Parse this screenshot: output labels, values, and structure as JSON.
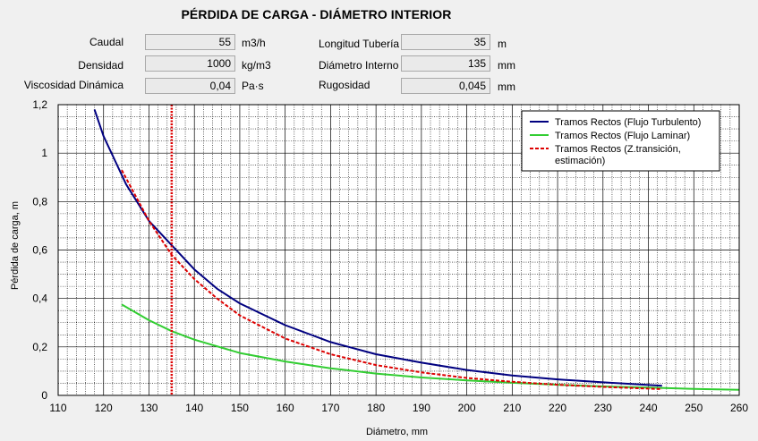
{
  "title": "PÉRDIDA DE CARGA - DIÁMETRO INTERIOR",
  "form": {
    "caudal": {
      "label": "Caudal",
      "value": "55",
      "unit": "m3/h"
    },
    "densidad": {
      "label": "Densidad",
      "value": "1000",
      "unit": "kg/m3"
    },
    "viscosidad": {
      "label": "Viscosidad Dinámica",
      "value": "0,04",
      "unit": "Pa·s"
    },
    "longitud": {
      "label": "Longitud Tubería",
      "value": "35",
      "unit": "m"
    },
    "diametro": {
      "label": "Diámetro Interno",
      "value": "135",
      "unit": "mm"
    },
    "rugosidad": {
      "label": "Rugosidad",
      "value": "0,045",
      "unit": "mm"
    }
  },
  "colors": {
    "turbulento": "#000080",
    "laminar": "#32cd32",
    "transicion": "#dd0000",
    "marker": "#dd0000",
    "grid": "#000000",
    "plot_bg": "#ffffff"
  },
  "chart_data": {
    "type": "line",
    "xlabel": "Diámetro, mm",
    "ylabel": "Pérdida de carga, m",
    "xlim": [
      110,
      260
    ],
    "ylim": [
      0,
      1.2
    ],
    "x_ticks": [
      "110",
      "120",
      "130",
      "140",
      "150",
      "160",
      "170",
      "180",
      "190",
      "200",
      "210",
      "220",
      "230",
      "240",
      "250",
      "260"
    ],
    "y_ticks": [
      "0",
      "0,2",
      "0,4",
      "0,6",
      "0,8",
      "1",
      "1,2"
    ],
    "grid": true,
    "legend_position": "top-right",
    "marker_x": 135,
    "series": [
      {
        "name": "Tramos Rectos (Flujo Turbulento)",
        "color_key": "turbulento",
        "style": "solid",
        "x": [
          118,
          120,
          125,
          130,
          135,
          140,
          145,
          150,
          160,
          170,
          180,
          190,
          200,
          210,
          220,
          230,
          243
        ],
        "y": [
          1.18,
          1.07,
          0.87,
          0.72,
          0.62,
          0.52,
          0.44,
          0.38,
          0.29,
          0.22,
          0.17,
          0.135,
          0.105,
          0.082,
          0.066,
          0.054,
          0.04
        ]
      },
      {
        "name": "Tramos Rectos (Flujo Laminar)",
        "color_key": "laminar",
        "style": "solid",
        "x": [
          124,
          130,
          135,
          140,
          150,
          160,
          170,
          180,
          190,
          200,
          210,
          220,
          230,
          240,
          250,
          260
        ],
        "y": [
          0.375,
          0.31,
          0.265,
          0.23,
          0.175,
          0.14,
          0.112,
          0.09,
          0.074,
          0.062,
          0.052,
          0.044,
          0.037,
          0.032,
          0.027,
          0.023
        ]
      },
      {
        "name": "Tramos Rectos (Z.transición, estimación)",
        "color_key": "transicion",
        "style": "dashed",
        "x": [
          124,
          130,
          135,
          140,
          145,
          150,
          160,
          170,
          180,
          190,
          200,
          210,
          220,
          230,
          243
        ],
        "y": [
          0.93,
          0.72,
          0.58,
          0.48,
          0.4,
          0.33,
          0.235,
          0.17,
          0.125,
          0.095,
          0.072,
          0.056,
          0.044,
          0.035,
          0.026
        ]
      }
    ]
  }
}
